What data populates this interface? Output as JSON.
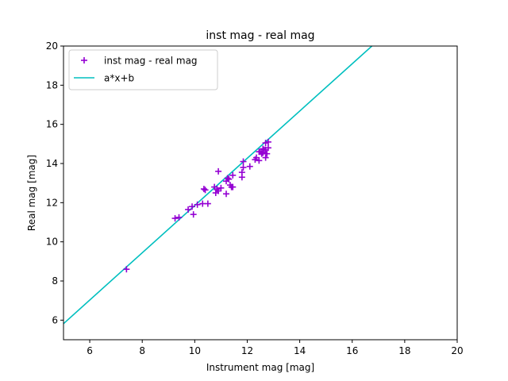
{
  "chart_data": {
    "type": "scatter",
    "title": "inst mag - real mag",
    "xlabel": "Instrument mag [mag]",
    "ylabel": "Real mag [mag]",
    "xlim": [
      5,
      20
    ],
    "ylim": [
      5,
      20
    ],
    "xticks": [
      6,
      8,
      10,
      12,
      14,
      16,
      18,
      20
    ],
    "yticks": [
      6,
      8,
      10,
      12,
      14,
      16,
      18,
      20
    ],
    "grid": false,
    "legend_position": "top-left",
    "series": [
      {
        "name": "inst mag - real mag",
        "kind": "scatter",
        "marker": "+",
        "color": "#9400d3",
        "points": [
          [
            7.4,
            8.6
          ],
          [
            9.25,
            11.2
          ],
          [
            9.4,
            11.25
          ],
          [
            9.75,
            11.65
          ],
          [
            9.9,
            11.8
          ],
          [
            9.95,
            11.4
          ],
          [
            10.1,
            11.9
          ],
          [
            10.3,
            11.95
          ],
          [
            10.35,
            12.7
          ],
          [
            10.4,
            12.65
          ],
          [
            10.5,
            11.95
          ],
          [
            10.75,
            12.8
          ],
          [
            10.8,
            12.5
          ],
          [
            10.85,
            12.7
          ],
          [
            10.9,
            12.6
          ],
          [
            10.9,
            13.6
          ],
          [
            11.0,
            12.75
          ],
          [
            11.2,
            12.45
          ],
          [
            11.2,
            13.1
          ],
          [
            11.25,
            13.25
          ],
          [
            11.3,
            13.2
          ],
          [
            11.35,
            12.9
          ],
          [
            11.4,
            12.8
          ],
          [
            11.45,
            13.4
          ],
          [
            11.45,
            12.8
          ],
          [
            11.8,
            13.3
          ],
          [
            11.8,
            13.55
          ],
          [
            11.85,
            13.8
          ],
          [
            11.85,
            14.1
          ],
          [
            12.1,
            13.85
          ],
          [
            12.3,
            14.2
          ],
          [
            12.35,
            14.3
          ],
          [
            12.45,
            14.15
          ],
          [
            12.45,
            14.6
          ],
          [
            12.5,
            14.6
          ],
          [
            12.55,
            14.5
          ],
          [
            12.6,
            14.55
          ],
          [
            12.6,
            14.75
          ],
          [
            12.65,
            14.7
          ],
          [
            12.7,
            14.3
          ],
          [
            12.7,
            14.7
          ],
          [
            12.7,
            15.05
          ],
          [
            12.75,
            14.5
          ],
          [
            12.8,
            14.8
          ],
          [
            12.8,
            15.1
          ]
        ]
      },
      {
        "name": "a*x+b",
        "kind": "line",
        "color": "#00bfbf",
        "x": [
          5.0,
          16.75
        ],
        "y": [
          5.82,
          20.0
        ]
      }
    ]
  }
}
